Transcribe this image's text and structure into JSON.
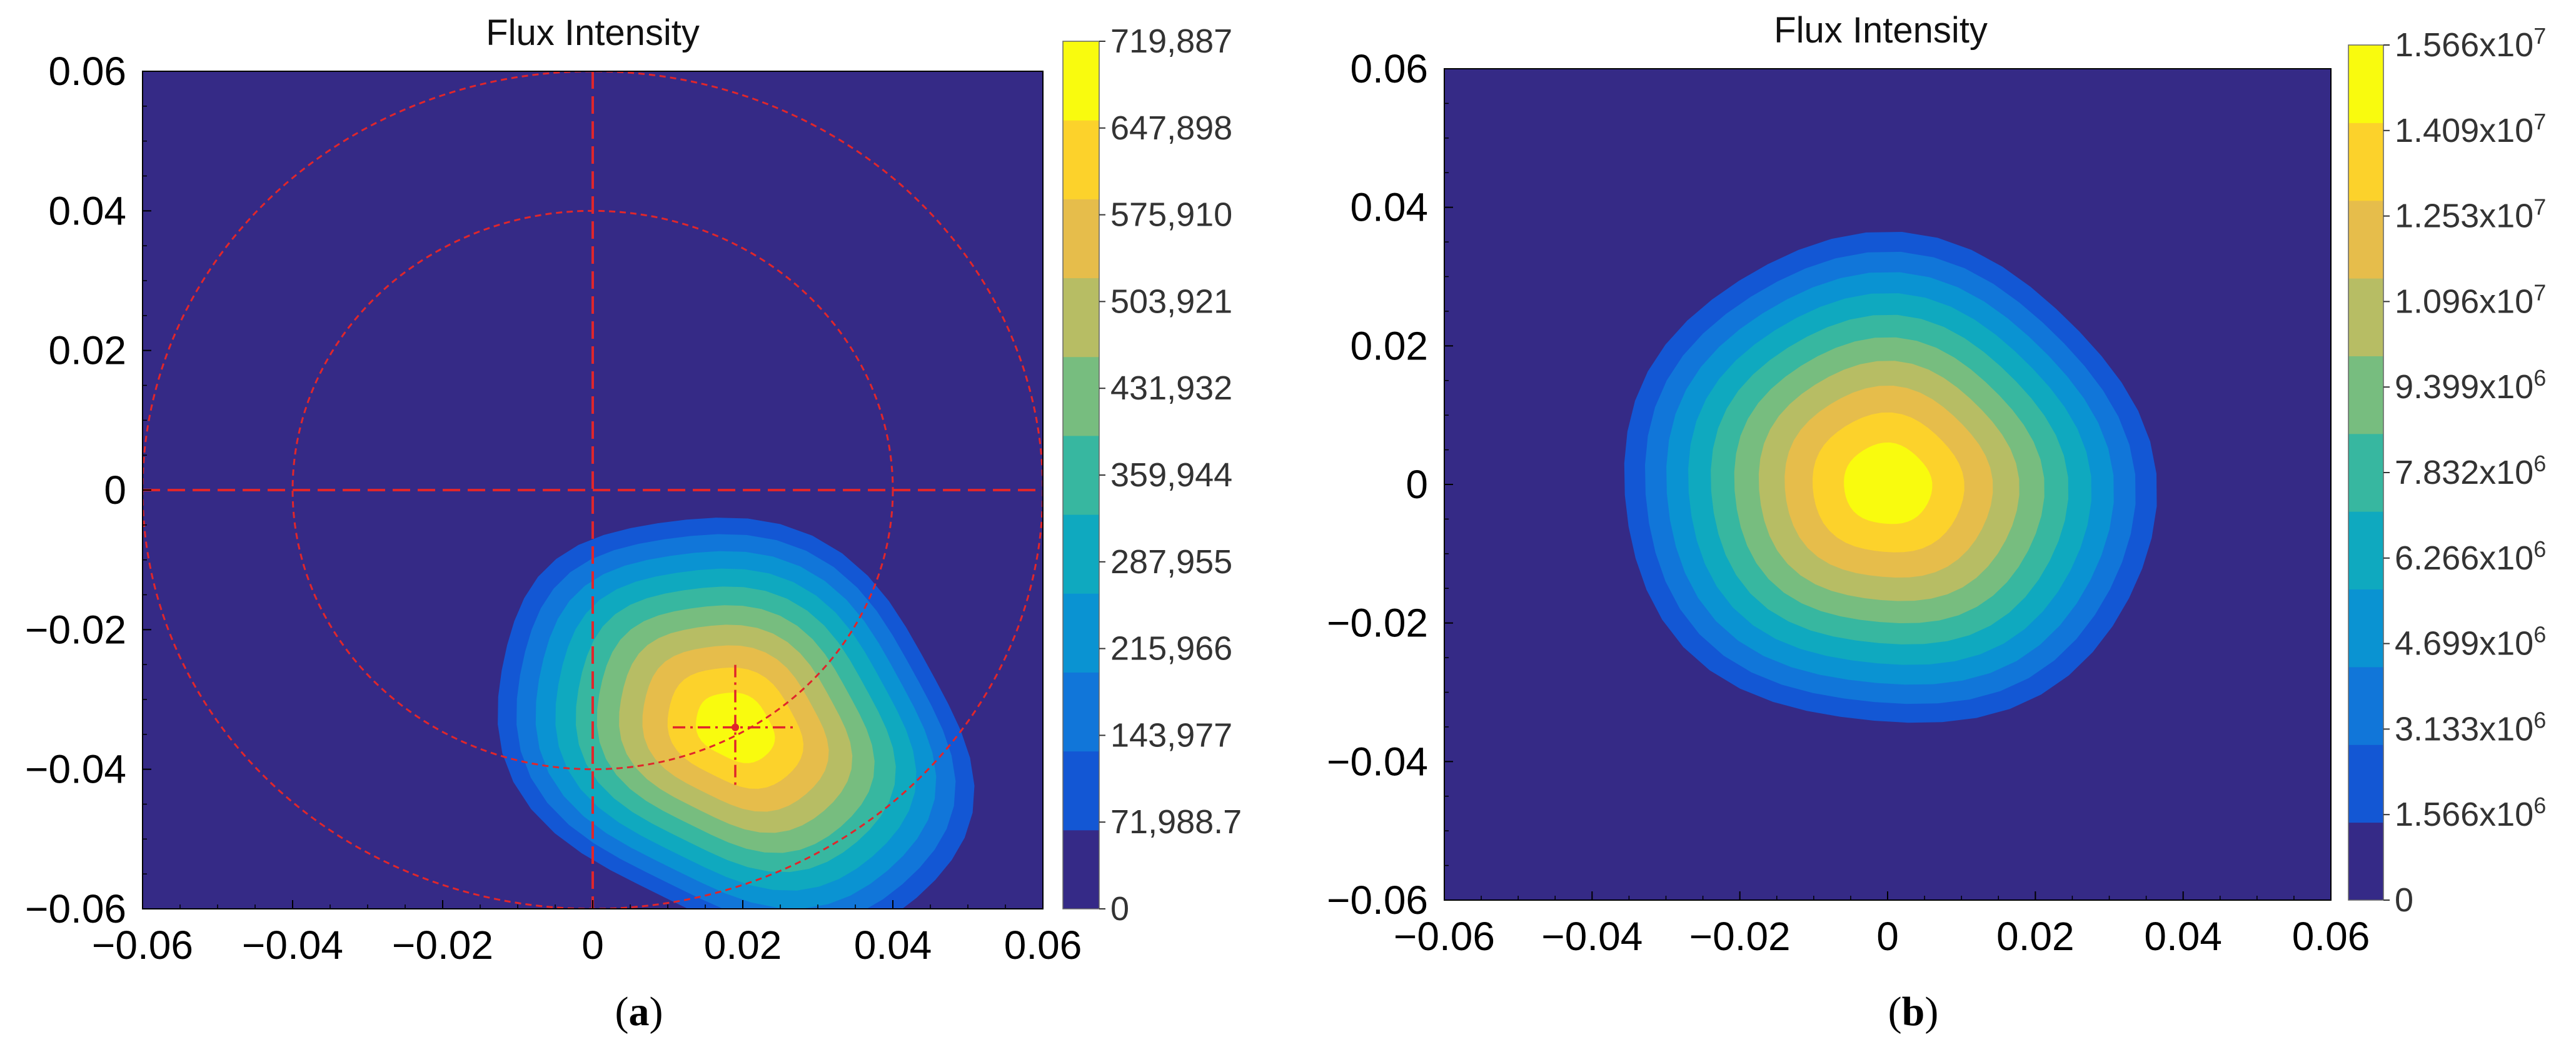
{
  "chart_data": [
    {
      "type": "heatmap",
      "panel_label": "a",
      "title": "Flux Intensity",
      "xlim": [
        -0.06,
        0.06
      ],
      "ylim": [
        -0.06,
        0.06
      ],
      "x_ticks": [
        "−0.06",
        "−0.04",
        "−0.02",
        "0",
        "0.02",
        "0.04",
        "0.06"
      ],
      "y_ticks": [
        "0.06",
        "0.04",
        "0.02",
        "0",
        "−0.02",
        "−0.04",
        "−0.06"
      ],
      "colorbar": {
        "min": 0,
        "max": 719887,
        "labels": [
          "719,887",
          "647,898",
          "575,910",
          "503,921",
          "431,932",
          "359,944",
          "287,955",
          "215,966",
          "143,977",
          "71,988.7",
          "0"
        ]
      },
      "flux_peak": {
        "x": 0.019,
        "y": -0.034,
        "value": 719887
      },
      "guide_circles_radius": [
        0.04,
        0.06
      ],
      "guide_circle_center": [
        0,
        0
      ],
      "guide_crosshair_at": [
        0,
        0
      ],
      "peak_marker_at": [
        0.019,
        -0.034
      ]
    },
    {
      "type": "heatmap",
      "panel_label": "b",
      "title": "Flux Intensity",
      "xlim": [
        -0.06,
        0.06
      ],
      "ylim": [
        -0.06,
        0.06
      ],
      "x_ticks": [
        "−0.06",
        "−0.04",
        "−0.02",
        "0",
        "0.02",
        "0.04",
        "0.06"
      ],
      "y_ticks": [
        "0.06",
        "0.04",
        "0.02",
        "0",
        "−0.02",
        "−0.04",
        "−0.06"
      ],
      "colorbar": {
        "min": 0,
        "max": 15660000,
        "labels": [
          {
            "mantissa": "1.566",
            "exponent": "7"
          },
          {
            "mantissa": "1.409",
            "exponent": "7"
          },
          {
            "mantissa": "1.253",
            "exponent": "7"
          },
          {
            "mantissa": "1.096",
            "exponent": "7"
          },
          {
            "mantissa": "9.399",
            "exponent": "6"
          },
          {
            "mantissa": "7.832",
            "exponent": "6"
          },
          {
            "mantissa": "6.266",
            "exponent": "6"
          },
          {
            "mantissa": "4.699",
            "exponent": "6"
          },
          {
            "mantissa": "3.133",
            "exponent": "6"
          },
          {
            "mantissa": "1.566",
            "exponent": "6"
          },
          {
            "mantissa": "0",
            "exponent": ""
          }
        ]
      },
      "flux_peak": {
        "x": 0.0,
        "y": 0.0,
        "value": 15660000
      }
    }
  ]
}
